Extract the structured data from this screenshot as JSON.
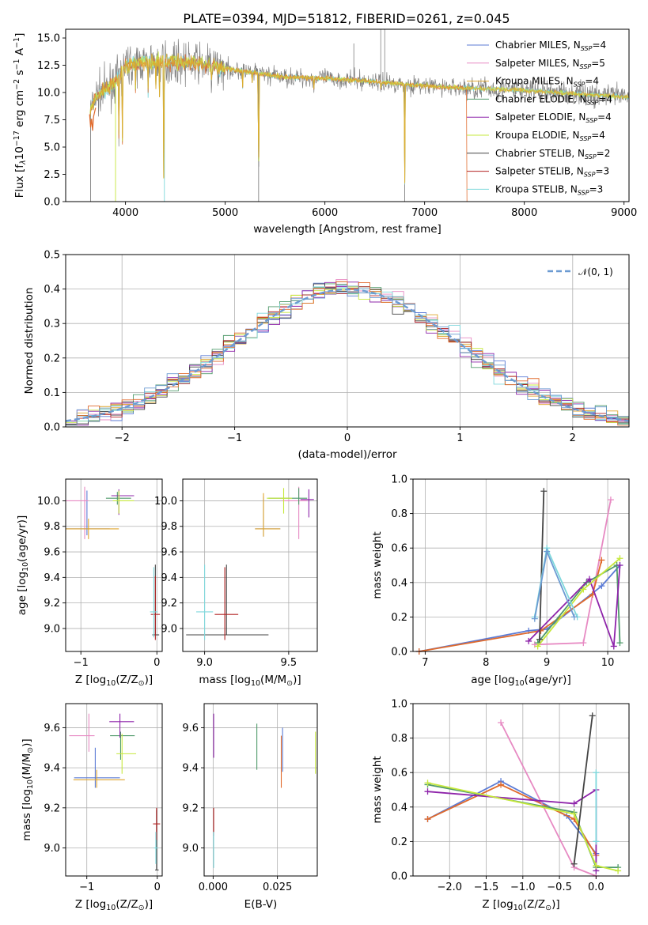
{
  "figure": {
    "title": "PLATE=0394, MJD=51812, FIBERID=0261, z=0.045"
  },
  "colors": {
    "series": [
      "#5b7bd5",
      "#e78ac3",
      "#dfa52e",
      "#4f9a6a",
      "#8e24aa",
      "#c6e83c",
      "#444444",
      "#b22222",
      "#7fd8dc"
    ],
    "extra": [
      "#e06a2c",
      "#6c9bd2"
    ]
  },
  "legend_entries": [
    "Chabrier MILES, N",
    "Salpeter MILES, N",
    "Kroupa MILES, N",
    "Chabrier ELODIE, N",
    "Salpeter ELODIE, N",
    "Kroupa ELODIE, N",
    "Chabrier STELIB, N",
    "Salpeter STELIB, N",
    "Kroupa STELIB, N"
  ],
  "legend_sub": "SSP",
  "legend_counts": [
    "=4",
    "=5",
    "=4",
    "=4",
    "=4",
    "=4",
    "=2",
    "=3",
    "=3"
  ],
  "chart_data": [
    {
      "id": "spectrum",
      "type": "line",
      "xlabel": "wavelength [Angstrom, rest frame]",
      "ylabel": "Flux [f",
      "ylabel_parts": [
        "Flux [f",
        "λ",
        "10",
        "−17",
        " erg cm",
        "−2",
        " s",
        "−1",
        " A",
        "−1",
        "]"
      ],
      "xlim": [
        3400,
        9050
      ],
      "ylim": [
        0,
        15.8
      ],
      "xticks": [
        4000,
        5000,
        6000,
        7000,
        8000,
        9000
      ],
      "yticks": [
        "0.0",
        "2.5",
        "5.0",
        "7.5",
        "10.0",
        "12.5",
        "15.0"
      ],
      "ytick_values": [
        0,
        2.5,
        5,
        7.5,
        10,
        12.5,
        15
      ],
      "grid": false,
      "legend": "top-right",
      "continuum_knots": [
        [
          3640,
          8.0
        ],
        [
          3700,
          9.6
        ],
        [
          3800,
          10.3
        ],
        [
          3900,
          11.0
        ],
        [
          4000,
          12.5
        ],
        [
          4100,
          12.7
        ],
        [
          4300,
          12.9
        ],
        [
          4500,
          12.8
        ],
        [
          4800,
          12.6
        ],
        [
          5000,
          12.2
        ],
        [
          5300,
          11.8
        ],
        [
          5600,
          11.4
        ],
        [
          6000,
          11.3
        ],
        [
          6500,
          11.0
        ],
        [
          7000,
          10.6
        ],
        [
          7400,
          10.4
        ],
        [
          8000,
          10.2
        ],
        [
          8500,
          9.9
        ],
        [
          9000,
          9.6
        ]
      ],
      "absorption_lines": [
        [
          3934,
          5.0
        ],
        [
          3969,
          5.5
        ],
        [
          4102,
          9.5
        ],
        [
          4227,
          10.0
        ],
        [
          4304,
          10.3
        ],
        [
          4341,
          9.8
        ],
        [
          4384,
          0.3
        ],
        [
          4861,
          10.5
        ],
        [
          5175,
          10.5
        ],
        [
          5270,
          10.8
        ],
        [
          5335,
          0.0
        ],
        [
          5890,
          10.2
        ],
        [
          6563,
          10.0
        ],
        [
          6800,
          0.0
        ]
      ],
      "spike_lines": [
        [
          6290,
          14.5
        ],
        [
          6560,
          15.8
        ],
        [
          6600,
          15.8
        ]
      ]
    },
    {
      "id": "residual-histogram",
      "type": "line",
      "xlabel": "(data-model)/error",
      "ylabel": "Normed distribution",
      "xlim": [
        -2.5,
        2.5
      ],
      "ylim": [
        0,
        0.5
      ],
      "xticks": [
        -2,
        -1,
        0,
        1,
        2
      ],
      "xtick_labels": [
        "−2",
        "−1",
        "0",
        "1",
        "2"
      ],
      "yticks": [
        "0.0",
        "0.1",
        "0.2",
        "0.3",
        "0.4",
        "0.5"
      ],
      "ytick_values": [
        0,
        0.1,
        0.2,
        0.3,
        0.4,
        0.5
      ],
      "grid": true,
      "legend": "top-right",
      "legend_label": "𝒩(0, 1)",
      "bin_width": 0.1
    },
    {
      "id": "age-vs-Z",
      "type": "scatter",
      "xlabel": "Z [log",
      "xlabel_parts": [
        "Z [log",
        "10",
        "(Z/Z",
        "⊙",
        ")]"
      ],
      "ylabel_parts": [
        "age  [log",
        "10",
        "(age/yr)]"
      ],
      "xlim": [
        -1.2,
        0.07
      ],
      "ylim": [
        8.82,
        10.17
      ],
      "xticks": [
        -1,
        0
      ],
      "xtick_labels": [
        "−1",
        "0"
      ],
      "yticks": [
        "9.0",
        "9.2",
        "9.4",
        "9.6",
        "9.8",
        "10.0"
      ],
      "ytick_values": [
        9.0,
        9.2,
        9.4,
        9.6,
        9.8,
        10.0
      ],
      "grid": true,
      "points": [
        {
          "c": 0,
          "x": -0.92,
          "y": 9.78,
          "xe": [
            0.3,
            0.3
          ],
          "ye": [
            0.05,
            0.3
          ]
        },
        {
          "c": 1,
          "x": -0.95,
          "y": 10.0,
          "xe": [
            0.25,
            0.05
          ],
          "ye": [
            0.3,
            0.11
          ]
        },
        {
          "c": 2,
          "x": -0.9,
          "y": 9.78,
          "xe": [
            0.32,
            0.4
          ],
          "ye": [
            0.08,
            0.08
          ]
        },
        {
          "c": 3,
          "x": -0.52,
          "y": 10.02,
          "xe": [
            0.15,
            0.18
          ],
          "ye": [
            0.05,
            0.05
          ]
        },
        {
          "c": 4,
          "x": -0.5,
          "y": 10.04,
          "xe": [
            0.1,
            0.2
          ],
          "ye": [
            0.15,
            0.05
          ]
        },
        {
          "c": 5,
          "x": -0.5,
          "y": 10.0,
          "xe": [
            0.08,
            0.2
          ],
          "ye": [
            0.1,
            0.08
          ]
        },
        {
          "c": 6,
          "x": -0.02,
          "y": 8.95,
          "xe": [
            0.04,
            0.05
          ],
          "ye": [
            0.0,
            0.55
          ]
        },
        {
          "c": 7,
          "x": -0.02,
          "y": 9.11,
          "xe": [
            0.06,
            0.06
          ],
          "ye": [
            0.2,
            0.3
          ]
        },
        {
          "c": 8,
          "x": -0.04,
          "y": 9.13,
          "xe": [
            0.05,
            0.05
          ],
          "ye": [
            0.2,
            0.35
          ]
        }
      ]
    },
    {
      "id": "age-vs-mass",
      "type": "scatter",
      "xlabel_parts": [
        "mass [log",
        "10",
        "(M/M",
        "⊙",
        ")]"
      ],
      "xlim": [
        8.87,
        9.67
      ],
      "ylim": [
        8.82,
        10.17
      ],
      "xticks": [
        9.0,
        9.5
      ],
      "xtick_labels": [
        "9.0",
        "9.5"
      ],
      "yticks": [
        "9.0",
        "9.2",
        "9.4",
        "9.6",
        "9.8",
        "10.0"
      ],
      "ytick_values": [
        9.0,
        9.2,
        9.4,
        9.6,
        9.8,
        10.0
      ],
      "grid": true,
      "points": [
        {
          "c": 0,
          "x": 9.35,
          "y": 9.78,
          "xe": [
            0.05,
            0.1
          ],
          "ye": [
            0.06,
            0.25
          ]
        },
        {
          "c": 1,
          "x": 9.56,
          "y": 10.0,
          "xe": [
            0.1,
            0.05
          ],
          "ye": [
            0.3,
            0.11
          ]
        },
        {
          "c": 2,
          "x": 9.35,
          "y": 9.78,
          "xe": [
            0.05,
            0.1
          ],
          "ye": [
            0.06,
            0.28
          ]
        },
        {
          "c": 3,
          "x": 9.56,
          "y": 10.02,
          "xe": [
            0.18,
            0.05
          ],
          "ye": [
            0.05,
            0.08
          ]
        },
        {
          "c": 4,
          "x": 9.62,
          "y": 10.01,
          "xe": [
            0.05,
            0.03
          ],
          "ye": [
            0.14,
            0.08
          ]
        },
        {
          "c": 5,
          "x": 9.47,
          "y": 10.02,
          "xe": [
            0.1,
            0.05
          ],
          "ye": [
            0.12,
            0.08
          ]
        },
        {
          "c": 6,
          "x": 9.13,
          "y": 8.95,
          "xe": [
            0.24,
            0.25
          ],
          "ye": [
            0.0,
            0.55
          ]
        },
        {
          "c": 7,
          "x": 9.12,
          "y": 9.11,
          "xe": [
            0.06,
            0.08
          ],
          "ye": [
            0.2,
            0.37
          ]
        },
        {
          "c": 8,
          "x": 9.0,
          "y": 9.13,
          "xe": [
            0.05,
            0.05
          ],
          "ye": [
            0.22,
            0.37
          ]
        }
      ]
    },
    {
      "id": "weight-vs-age",
      "type": "line",
      "xlabel_parts": [
        "age  [log",
        "10",
        "(age/yr)]"
      ],
      "ylabel": "mass weight",
      "xlim": [
        6.8,
        10.35
      ],
      "ylim": [
        0,
        1.0
      ],
      "xticks": [
        7,
        8,
        9,
        10
      ],
      "xtick_labels": [
        "7",
        "8",
        "9",
        "10"
      ],
      "yticks": [
        "0.0",
        "0.2",
        "0.4",
        "0.6",
        "0.8",
        "1.0"
      ],
      "ytick_values": [
        0,
        0.2,
        0.4,
        0.6,
        0.8,
        1.0
      ],
      "grid": true,
      "series": [
        {
          "c": 0,
          "x": [
            6.9,
            8.7,
            9.0,
            9.9,
            10.2
          ],
          "y": [
            0.0,
            0.12,
            0.13,
            0.38,
            0.5
          ]
        },
        {
          "c": 1,
          "x": [
            8.8,
            9.6,
            10.05
          ],
          "y": [
            0.04,
            0.05,
            0.88
          ]
        },
        {
          "c": 9,
          "x": [
            6.9,
            8.9,
            9.75,
            9.9
          ],
          "y": [
            0.0,
            0.12,
            0.33,
            0.53
          ]
        },
        {
          "c": 3,
          "x": [
            8.85,
            9.65,
            10.15,
            10.2
          ],
          "y": [
            0.05,
            0.4,
            0.5,
            0.05
          ]
        },
        {
          "c": 4,
          "x": [
            8.7,
            9.7,
            10.1,
            10.2
          ],
          "y": [
            0.06,
            0.42,
            0.03,
            0.5
          ]
        },
        {
          "c": 5,
          "x": [
            8.85,
            9.6,
            10.2
          ],
          "y": [
            0.03,
            0.36,
            0.54
          ]
        },
        {
          "c": 6,
          "x": [
            8.88,
            8.95
          ],
          "y": [
            0.07,
            0.93
          ]
        },
        {
          "c": 8,
          "x": [
            8.8,
            9.0,
            9.5
          ],
          "y": [
            0.2,
            0.6,
            0.2
          ]
        },
        {
          "c": 10,
          "x": [
            8.8,
            9.0,
            9.45
          ],
          "y": [
            0.19,
            0.58,
            0.2
          ]
        }
      ]
    },
    {
      "id": "mass-vs-Z",
      "type": "scatter",
      "xlabel_parts": [
        "Z [log",
        "10",
        "(Z/Z",
        "⊙",
        ")]"
      ],
      "ylabel_parts": [
        "mass [log",
        "10",
        "(M/M",
        "⊙",
        ")]"
      ],
      "xlim": [
        -1.3,
        0.07
      ],
      "ylim": [
        8.86,
        9.72
      ],
      "xticks": [
        -1,
        0
      ],
      "xtick_labels": [
        "−1",
        "0"
      ],
      "yticks": [
        "9.0",
        "9.2",
        "9.4",
        "9.6"
      ],
      "ytick_values": [
        9.0,
        9.2,
        9.4,
        9.6
      ],
      "grid": true,
      "points": [
        {
          "c": 0,
          "x": -0.88,
          "y": 9.35,
          "xe": [
            0.3,
            0.35
          ],
          "ye": [
            0.05,
            0.15
          ]
        },
        {
          "c": 1,
          "x": -0.97,
          "y": 9.56,
          "xe": [
            0.28,
            0.08
          ],
          "ye": [
            0.08,
            0.11
          ]
        },
        {
          "c": 2,
          "x": -0.86,
          "y": 9.34,
          "xe": [
            0.33,
            0.4
          ],
          "ye": [
            0.04,
            0.05
          ]
        },
        {
          "c": 3,
          "x": -0.52,
          "y": 9.56,
          "xe": [
            0.15,
            0.2
          ],
          "ye": [
            0.12,
            0.02
          ]
        },
        {
          "c": 4,
          "x": -0.53,
          "y": 9.63,
          "xe": [
            0.15,
            0.2
          ],
          "ye": [
            0.08,
            0.04
          ]
        },
        {
          "c": 5,
          "x": -0.5,
          "y": 9.47,
          "xe": [
            0.08,
            0.2
          ],
          "ye": [
            0.1,
            0.1
          ]
        },
        {
          "c": 6,
          "x": -0.01,
          "y": 8.89,
          "xe": [
            0.02,
            0.03
          ],
          "ye": [
            0.0,
            0.3
          ]
        },
        {
          "c": 7,
          "x": -0.01,
          "y": 9.12,
          "xe": [
            0.05,
            0.05
          ],
          "ye": [
            0.08,
            0.08
          ]
        },
        {
          "c": 8,
          "x": -0.02,
          "y": 9.0,
          "xe": [
            0.03,
            0.03
          ],
          "ye": [
            0.08,
            0.08
          ]
        }
      ]
    },
    {
      "id": "mass-vs-EBV",
      "type": "scatter",
      "xlabel": "E(B-V)",
      "xlim": [
        -0.0035,
        0.0405
      ],
      "ylim": [
        8.86,
        9.72
      ],
      "xticks": [
        0.0,
        0.025
      ],
      "xtick_labels": [
        "0.000",
        "0.025"
      ],
      "yticks": [
        "9.0",
        "9.2",
        "9.4",
        "9.6"
      ],
      "ytick_values": [
        9.0,
        9.2,
        9.4,
        9.6
      ],
      "grid": true,
      "points": [
        {
          "c": 4,
          "x": 0.0002,
          "y": 9.55,
          "xe": [
            0,
            0
          ],
          "ye": [
            0.1,
            0.12
          ]
        },
        {
          "c": 7,
          "x": 0.0002,
          "y": 9.12,
          "xe": [
            0,
            0
          ],
          "ye": [
            0.06,
            0.08
          ]
        },
        {
          "c": 8,
          "x": 0.0002,
          "y": 9.0,
          "xe": [
            0,
            0
          ],
          "ye": [
            0.1,
            0.08
          ]
        },
        {
          "c": 3,
          "x": 0.017,
          "y": 9.5,
          "xe": [
            0,
            0
          ],
          "ye": [
            0.11,
            0.12
          ]
        },
        {
          "c": 9,
          "x": 0.0265,
          "y": 9.44,
          "xe": [
            0,
            0
          ],
          "ye": [
            0.14,
            0.12
          ]
        },
        {
          "c": 0,
          "x": 0.027,
          "y": 9.48,
          "xe": [
            0,
            0
          ],
          "ye": [
            0.1,
            0.12
          ]
        },
        {
          "c": 5,
          "x": 0.0398,
          "y": 9.47,
          "xe": [
            0,
            0
          ],
          "ye": [
            0.1,
            0.11
          ]
        }
      ]
    },
    {
      "id": "weight-vs-Z",
      "type": "line",
      "xlabel_parts": [
        "Z [log",
        "10",
        "(Z/Z",
        "⊙",
        ")]"
      ],
      "ylabel": "mass weight",
      "xlim": [
        -2.5,
        0.45
      ],
      "ylim": [
        0,
        1.0
      ],
      "xticks": [
        -2.0,
        -1.5,
        -1.0,
        -0.5,
        0.0
      ],
      "xtick_labels": [
        "−2.0",
        "−1.5",
        "−1.0",
        "−0.5",
        "0.0"
      ],
      "yticks": [
        "0.0",
        "0.2",
        "0.4",
        "0.6",
        "0.8",
        "1.0"
      ],
      "ytick_values": [
        0,
        0.2,
        0.4,
        0.6,
        0.8,
        1.0
      ],
      "grid": true,
      "series": [
        {
          "c": 0,
          "x": [
            -2.3,
            -1.3,
            -0.4,
            0.0
          ],
          "y": [
            0.33,
            0.55,
            0.35,
            0.13
          ]
        },
        {
          "c": 9,
          "x": [
            -2.3,
            -1.3,
            -0.3,
            0.0
          ],
          "y": [
            0.33,
            0.53,
            0.33,
            0.12
          ]
        },
        {
          "c": 1,
          "x": [
            -1.3,
            -0.3,
            0.0
          ],
          "y": [
            0.89,
            0.05,
            0.0
          ]
        },
        {
          "c": 3,
          "x": [
            -2.3,
            -0.3,
            0.0,
            0.3
          ],
          "y": [
            0.53,
            0.37,
            0.05,
            0.05
          ]
        },
        {
          "c": 4,
          "x": [
            -2.3,
            -0.3,
            0.0,
            0.0
          ],
          "y": [
            0.49,
            0.42,
            0.5,
            0.03
          ]
        },
        {
          "c": 5,
          "x": [
            -2.3,
            -0.3,
            0.0,
            0.3
          ],
          "y": [
            0.54,
            0.36,
            0.06,
            0.03
          ]
        },
        {
          "c": 6,
          "x": [
            -0.3,
            -0.05
          ],
          "y": [
            0.07,
            0.93
          ]
        },
        {
          "c": 8,
          "x": [
            0.0,
            0.0,
            0.0
          ],
          "y": [
            0.2,
            0.6,
            0.2
          ]
        }
      ]
    }
  ]
}
